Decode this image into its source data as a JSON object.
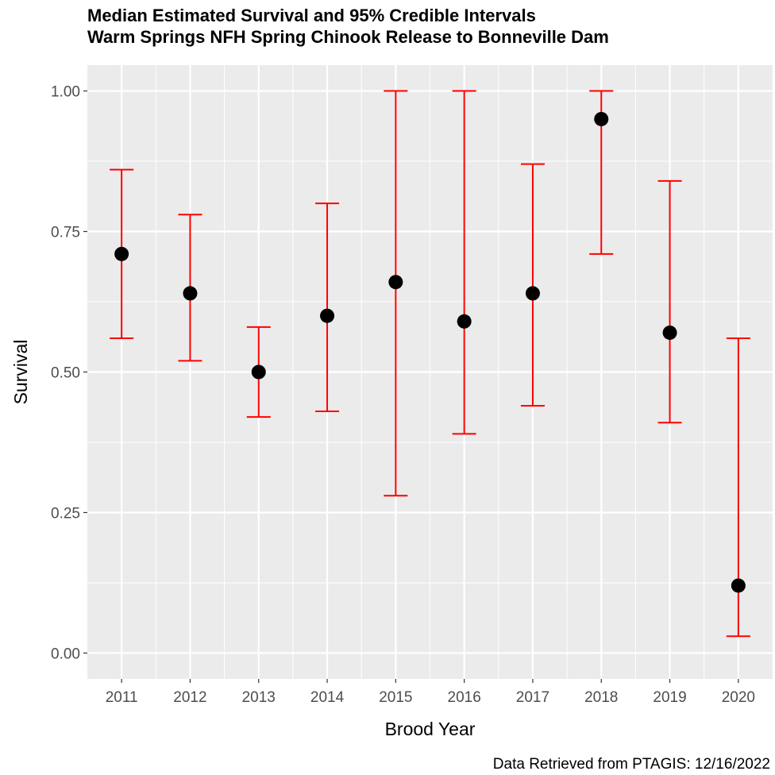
{
  "chart_data": {
    "type": "scatter",
    "title_lines": [
      "Median Estimated Survival and 95% Credible Intervals",
      "Warm Springs NFH Spring Chinook Release to Bonneville Dam"
    ],
    "xlabel": "Brood Year",
    "ylabel": "Survival",
    "caption": "Data Retrieved from PTAGIS: 12/16/2022",
    "categories": [
      "2011",
      "2012",
      "2013",
      "2014",
      "2015",
      "2016",
      "2017",
      "2018",
      "2019",
      "2020"
    ],
    "median": [
      0.71,
      0.64,
      0.5,
      0.6,
      0.66,
      0.59,
      0.64,
      0.95,
      0.57,
      0.12
    ],
    "lower": [
      0.56,
      0.52,
      0.42,
      0.43,
      0.28,
      0.39,
      0.44,
      0.71,
      0.41,
      0.03
    ],
    "upper": [
      0.86,
      0.78,
      0.58,
      0.8,
      1.0,
      1.0,
      0.87,
      1.0,
      0.84,
      0.56
    ],
    "ylim": [
      -0.046,
      1.046
    ],
    "yticks": [
      "0.00",
      "0.25",
      "0.50",
      "0.75",
      "1.00"
    ],
    "grid": true,
    "colors": {
      "panel_bg": "#ebebeb",
      "grid": "#ffffff",
      "interval": "#ff0000",
      "point": "#000000"
    }
  }
}
